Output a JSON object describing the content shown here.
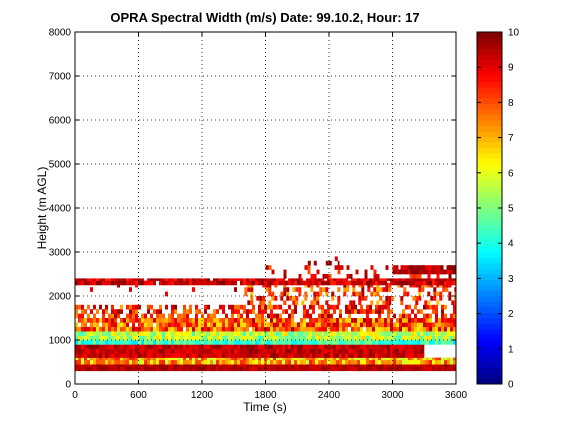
{
  "chart_data": {
    "type": "heatmap",
    "title": "OPRA Spectral Width (m/s)  Date: 99.10.2, Hour: 17",
    "xlabel": "Time (s)",
    "ylabel": "Height (m AGL)",
    "xlim": [
      0,
      3600
    ],
    "ylim": [
      0,
      8000
    ],
    "xticks": [
      0,
      600,
      1200,
      1800,
      2400,
      3000,
      3600
    ],
    "yticks": [
      0,
      1000,
      2000,
      3000,
      4000,
      5000,
      6000,
      7000,
      8000
    ],
    "grid": true,
    "colorbar": {
      "range": [
        0,
        10
      ],
      "ticks": [
        0,
        1,
        2,
        3,
        4,
        5,
        6,
        7,
        8,
        9,
        10
      ],
      "colormap": "jet"
    },
    "gate_height_m": 100,
    "layers": [
      {
        "z0": 300,
        "z1": 450,
        "x0": 0,
        "x1": 3600,
        "value": 9.5,
        "noise": 0.4,
        "fill": 1.0
      },
      {
        "z0": 450,
        "z1": 600,
        "x0": 0,
        "x1": 3600,
        "value": 7.0,
        "noise": 1.5,
        "fill": 1.0
      },
      {
        "z0": 600,
        "z1": 900,
        "x0": 0,
        "x1": 3300,
        "value": 9.3,
        "noise": 0.6,
        "fill": 1.0
      },
      {
        "z0": 900,
        "z1": 1000,
        "x0": 0,
        "x1": 3600,
        "value": 4.3,
        "noise": 0.9,
        "fill": 1.0
      },
      {
        "z0": 1000,
        "z1": 1200,
        "x0": 0,
        "x1": 3600,
        "value": 5.5,
        "noise": 1.2,
        "fill": 1.0
      },
      {
        "z0": 1200,
        "z1": 1500,
        "x0": 0,
        "x1": 3600,
        "value": 8.0,
        "noise": 1.6,
        "fill": 0.95
      },
      {
        "z0": 1500,
        "z1": 1800,
        "x0": 0,
        "x1": 3600,
        "value": 8.5,
        "noise": 1.4,
        "fill": 0.6
      },
      {
        "z0": 1800,
        "z1": 2300,
        "x0": 1600,
        "x1": 3600,
        "value": 8.3,
        "noise": 1.5,
        "fill": 0.45
      },
      {
        "z0": 2000,
        "z1": 2300,
        "x0": 0,
        "x1": 1600,
        "value": 9.0,
        "noise": 0.8,
        "fill": 0.08
      },
      {
        "z0": 2250,
        "z1": 2400,
        "x0": 0,
        "x1": 3600,
        "value": 9.2,
        "noise": 0.8,
        "fill": 0.95
      },
      {
        "z0": 2400,
        "z1": 2700,
        "x0": 1800,
        "x1": 3600,
        "value": 9.0,
        "noise": 1.2,
        "fill": 0.25
      },
      {
        "z0": 2500,
        "z1": 2700,
        "x0": 3000,
        "x1": 3600,
        "value": 9.4,
        "noise": 0.6,
        "fill": 0.95
      },
      {
        "z0": 2700,
        "z1": 3000,
        "x0": 2200,
        "x1": 2500,
        "value": 9.5,
        "noise": 0.4,
        "fill": 0.12
      }
    ]
  }
}
